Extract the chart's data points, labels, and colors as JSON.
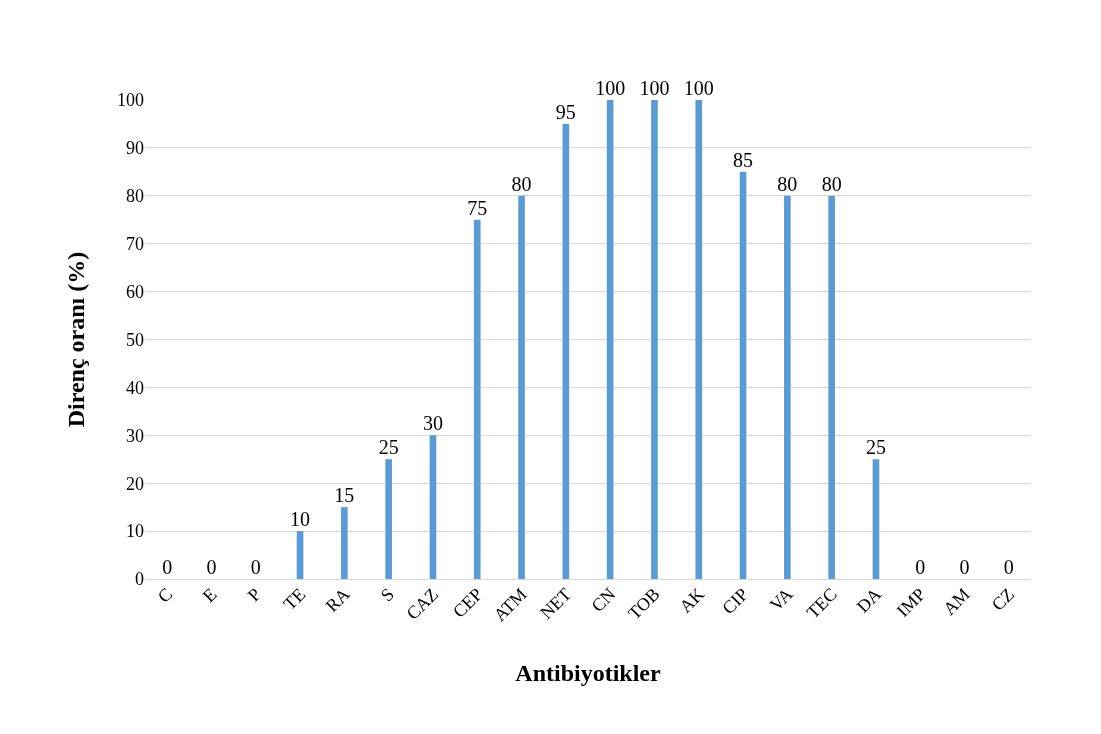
{
  "chart_data": {
    "type": "bar",
    "categories": [
      "C",
      "E",
      "P",
      "TE",
      "RA",
      "S",
      "CAZ",
      "CEP",
      "ATM",
      "NET",
      "CN",
      "TOB",
      "AK",
      "CIP",
      "VA",
      "TEC",
      "DA",
      "IMP",
      "AM",
      "CZ"
    ],
    "values": [
      0,
      0,
      0,
      10,
      15,
      25,
      30,
      75,
      80,
      95,
      100,
      100,
      100,
      85,
      80,
      80,
      25,
      0,
      0,
      0
    ],
    "color": "#5b9bd5",
    "xlabel": "Antibiyotikler",
    "ylabel": "Direnç oranı (%)",
    "ylim": [
      0,
      100
    ],
    "yticks": [
      0,
      10,
      20,
      30,
      40,
      50,
      60,
      70,
      80,
      90,
      100
    ],
    "grid": "y",
    "data_labels": true,
    "legend": false
  }
}
